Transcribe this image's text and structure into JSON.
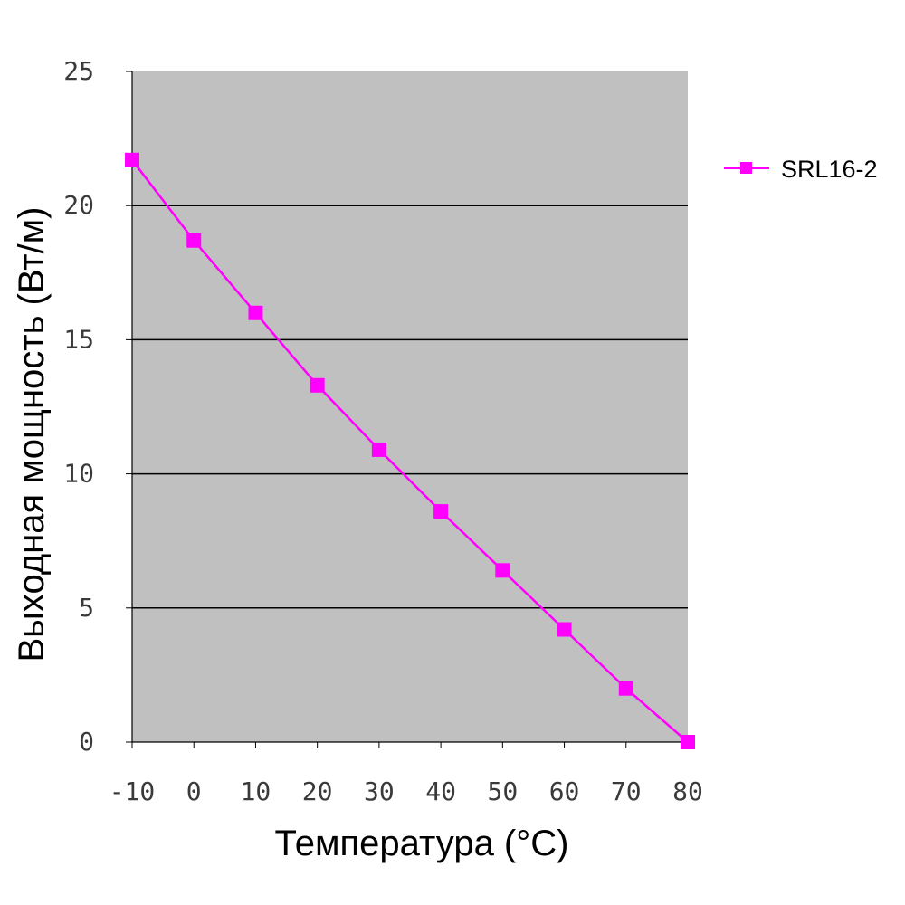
{
  "chart_data": {
    "type": "line",
    "title": "",
    "xlabel": "Температура (°C)",
    "ylabel": "Выходная мощность (Вт/м)",
    "x": [
      -10,
      0,
      10,
      20,
      30,
      40,
      50,
      60,
      70,
      80
    ],
    "xticks": [
      "-10",
      "0",
      "10",
      "20",
      "30",
      "40",
      "50",
      "60",
      "70",
      "80"
    ],
    "yticks": [
      "0",
      "5",
      "10",
      "15",
      "20",
      "25"
    ],
    "ylim": [
      0,
      25
    ],
    "series": [
      {
        "name": "SRL16-2",
        "values": [
          21.7,
          18.7,
          16.0,
          13.3,
          10.9,
          8.6,
          6.4,
          4.2,
          2.0,
          0.0
        ],
        "color": "#ff00ff",
        "marker": "square"
      }
    ],
    "grid": "horizontal major gridlines",
    "plot_background": "#c0c0c0",
    "legend_position": "right"
  }
}
